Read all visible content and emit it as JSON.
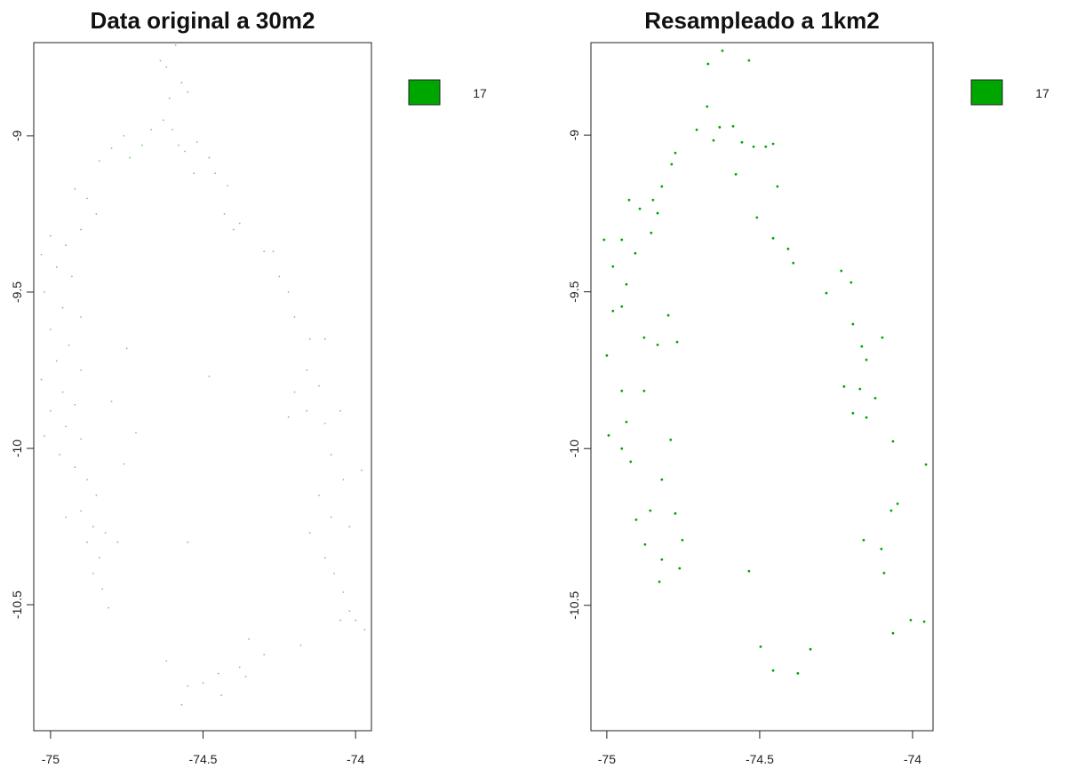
{
  "chart_data": [
    {
      "type": "scatter",
      "title": "Data original a 30m2",
      "legend": "right",
      "xlim": [
        -75.055,
        -73.948
      ],
      "ylim": [
        -10.903,
        -8.702
      ],
      "xticks": [
        -75,
        -74.5,
        -74
      ],
      "yticks": [
        -9,
        -9.5,
        -10,
        -10.5
      ],
      "series": [
        {
          "name": "17",
          "color": "#00a600",
          "x": [
            -74.64,
            -74.62,
            -74.59,
            -74.57,
            -74.61,
            -74.55,
            -74.63,
            -74.67,
            -74.6,
            -74.58,
            -74.7,
            -74.74,
            -74.56,
            -74.52,
            -74.48,
            -74.53,
            -74.46,
            -74.42,
            -74.43,
            -74.4,
            -74.38,
            -74.3,
            -74.27,
            -74.25,
            -74.22,
            -74.2,
            -74.15,
            -74.1,
            -74.16,
            -74.12,
            -74.2,
            -74.16,
            -74.22,
            -74.1,
            -74.05,
            -74.08,
            -74.04,
            -73.98,
            -74.12,
            -74.08,
            -74.02,
            -74.15,
            -74.1,
            -74.07,
            -74.04,
            -74.02,
            -74,
            -73.97,
            -74.05,
            -74.35,
            -74.3,
            -74.38,
            -74.45,
            -74.5,
            -74.55,
            -74.62,
            -74.57,
            -74.44,
            -74.36,
            -74.18,
            -74.92,
            -74.88,
            -74.85,
            -74.9,
            -74.95,
            -75,
            -75.03,
            -74.98,
            -74.93,
            -75.02,
            -74.96,
            -74.9,
            -75,
            -74.94,
            -74.98,
            -74.9,
            -75.03,
            -74.96,
            -74.92,
            -75,
            -74.95,
            -74.9,
            -75.02,
            -74.97,
            -74.92,
            -74.88,
            -74.85,
            -74.9,
            -74.95,
            -74.86,
            -74.82,
            -74.88,
            -74.78,
            -74.84,
            -74.86,
            -74.83,
            -74.81,
            -74.76,
            -74.72,
            -74.8,
            -74.75,
            -74.55,
            -74.48,
            -74.84,
            -74.8,
            -74.76
          ],
          "values": [
            -8.76,
            -8.78,
            -8.71,
            -8.83,
            -8.88,
            -8.86,
            -8.95,
            -8.98,
            -8.98,
            -9.03,
            -9.03,
            -9.07,
            -9.05,
            -9.02,
            -9.07,
            -9.12,
            -9.12,
            -9.16,
            -9.25,
            -9.3,
            -9.28,
            -9.37,
            -9.37,
            -9.45,
            -9.5,
            -9.58,
            -9.65,
            -9.65,
            -9.75,
            -9.8,
            -9.82,
            -9.88,
            -9.9,
            -9.92,
            -9.88,
            -10.02,
            -10.1,
            -10.07,
            -10.15,
            -10.22,
            -10.25,
            -10.27,
            -10.35,
            -10.4,
            -10.46,
            -10.52,
            -10.55,
            -10.58,
            -10.55,
            -10.61,
            -10.66,
            -10.7,
            -10.72,
            -10.75,
            -10.76,
            -10.68,
            -10.82,
            -10.79,
            -10.73,
            -10.63,
            -9.17,
            -9.2,
            -9.25,
            -9.3,
            -9.35,
            -9.32,
            -9.38,
            -9.42,
            -9.45,
            -9.5,
            -9.55,
            -9.58,
            -9.62,
            -9.67,
            -9.72,
            -9.75,
            -9.78,
            -9.82,
            -9.86,
            -9.88,
            -9.93,
            -9.97,
            -9.96,
            -10.02,
            -10.06,
            -10.1,
            -10.15,
            -10.2,
            -10.22,
            -10.25,
            -10.27,
            -10.3,
            -10.3,
            -10.35,
            -10.4,
            -10.45,
            -10.51,
            -10.05,
            -9.95,
            -9.85,
            -9.68,
            -10.3,
            -9.77,
            -9.08,
            -9.04,
            -9
          ]
        }
      ]
    },
    {
      "type": "scatter",
      "title": "Resampleado a 1km2",
      "legend": "right",
      "xlim": [
        -75.052,
        -73.933
      ],
      "ylim": [
        -10.9,
        -8.705
      ],
      "xticks": [
        -75,
        -74.5,
        -74
      ],
      "yticks": [
        -9,
        -9.5,
        -10,
        -10.5
      ],
      "series": [
        {
          "name": "17",
          "color": "#00a600",
          "x": [
            -74.669,
            -74.622,
            -74.535,
            -74.672,
            -74.706,
            -74.631,
            -74.587,
            -74.651,
            -74.558,
            -74.48,
            -74.456,
            -74.578,
            -74.776,
            -74.788,
            -74.82,
            -74.849,
            -74.892,
            -74.834,
            -74.927,
            -74.951,
            -74.907,
            -74.855,
            -75.009,
            -74.98,
            -74.936,
            -74.951,
            -74.98,
            -74.799,
            -74.878,
            -74.834,
            -74.77,
            -75,
            -74.951,
            -74.878,
            -74.936,
            -74.994,
            -74.951,
            -74.922,
            -74.791,
            -74.82,
            -74.904,
            -74.858,
            -74.776,
            -74.753,
            -74.875,
            -74.82,
            -74.762,
            -74.828,
            -74.497,
            -74.456,
            -74.375,
            -74.334,
            -74.535,
            -74.52,
            -74.442,
            -74.509,
            -74.456,
            -74.407,
            -74.39,
            -74.282,
            -74.233,
            -74.201,
            -74.195,
            -74.166,
            -74.099,
            -74.151,
            -74.224,
            -74.172,
            -74.122,
            -74.195,
            -74.151,
            -74.064,
            -74.049,
            -74.07,
            -74.16,
            -74.102,
            -74.093,
            -73.956,
            -74.006,
            -73.962,
            -74.064
          ],
          "values": [
            -8.773,
            -8.731,
            -8.762,
            -8.909,
            -8.983,
            -8.975,
            -8.972,
            -9.017,
            -9.023,
            -9.037,
            -9.028,
            -9.125,
            -9.057,
            -9.093,
            -9.164,
            -9.207,
            -9.235,
            -9.249,
            -9.207,
            -9.334,
            -9.377,
            -9.312,
            -9.334,
            -9.419,
            -9.476,
            -9.547,
            -9.561,
            -9.575,
            -9.646,
            -9.669,
            -9.66,
            -9.703,
            -9.816,
            -9.816,
            -9.915,
            -9.958,
            -10,
            -10.042,
            -9.972,
            -10.099,
            -10.227,
            -10.198,
            -10.207,
            -10.292,
            -10.306,
            -10.354,
            -10.382,
            -10.425,
            -10.632,
            -10.708,
            -10.717,
            -10.64,
            -10.391,
            -9.037,
            -9.164,
            -9.263,
            -9.329,
            -9.363,
            -9.408,
            -9.504,
            -9.433,
            -9.47,
            -9.603,
            -9.674,
            -9.646,
            -9.717,
            -9.802,
            -9.81,
            -9.839,
            -9.887,
            -9.901,
            -9.977,
            -10.176,
            -10.198,
            -10.292,
            -10.32,
            -10.397,
            -10.051,
            -10.547,
            -10.552,
            -10.589
          ]
        }
      ]
    }
  ]
}
